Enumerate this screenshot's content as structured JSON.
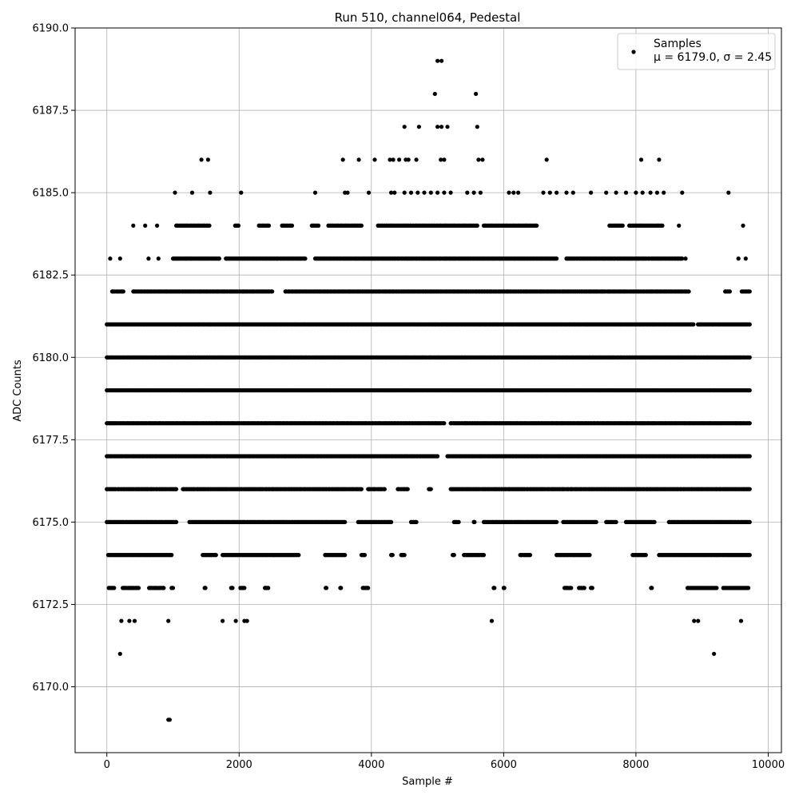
{
  "chart_data": {
    "type": "scatter",
    "title": "Run 510, channel064, Pedestal",
    "xlabel": "Sample #",
    "ylabel": "ADC Counts",
    "xlim": [
      -480,
      10200
    ],
    "ylim": [
      6168.0,
      6190.0
    ],
    "xticks": [
      0,
      2000,
      4000,
      6000,
      8000,
      10000
    ],
    "yticks": [
      6170.0,
      6172.5,
      6175.0,
      6177.5,
      6180.0,
      6182.5,
      6185.0,
      6187.5,
      6190.0
    ],
    "xtick_labels": [
      "0",
      "2000",
      "4000",
      "6000",
      "8000",
      "10000"
    ],
    "ytick_labels": [
      "6170.0",
      "6172.5",
      "6175.0",
      "6177.5",
      "6180.0",
      "6182.5",
      "6185.0",
      "6187.5",
      "6190.0"
    ],
    "grid": true,
    "legend_position": "top-right",
    "legend": {
      "label": "Samples",
      "stats": "μ = 6179.0, σ = 2.45"
    },
    "series": [
      {
        "name": "Samples",
        "color": "#000000",
        "n_samples": 9728,
        "mean": 6179.0,
        "std": 2.45,
        "levels": [
          6169,
          6171,
          6172,
          6173,
          6174,
          6175,
          6176,
          6177,
          6178,
          6179,
          6180,
          6181,
          6182,
          6183,
          6184,
          6185,
          6186,
          6187,
          6188,
          6189
        ],
        "points": [
          [
            930,
            6169
          ],
          [
            950,
            6169
          ],
          [
            200,
            6171
          ],
          [
            9180,
            6171
          ],
          [
            220,
            6172
          ],
          [
            340,
            6172
          ],
          [
            420,
            6172
          ],
          [
            930,
            6172
          ],
          [
            1750,
            6172
          ],
          [
            1950,
            6172
          ],
          [
            2080,
            6172
          ],
          [
            2120,
            6172
          ],
          [
            5820,
            6172
          ],
          [
            8880,
            6172
          ],
          [
            8940,
            6172
          ],
          [
            9590,
            6172
          ],
          [
            5000,
            6189
          ],
          [
            5060,
            6189
          ],
          [
            4960,
            6188
          ],
          [
            5580,
            6188
          ],
          [
            4500,
            6187
          ],
          [
            4720,
            6187
          ],
          [
            5000,
            6187
          ],
          [
            5060,
            6187
          ],
          [
            5150,
            6187
          ],
          [
            5600,
            6187
          ],
          [
            1430,
            6186
          ],
          [
            1530,
            6186
          ],
          [
            3570,
            6186
          ],
          [
            3810,
            6186
          ],
          [
            4050,
            6186
          ],
          [
            4280,
            6186
          ],
          [
            4330,
            6186
          ],
          [
            4420,
            6186
          ],
          [
            4520,
            6186
          ],
          [
            4560,
            6186
          ],
          [
            4680,
            6186
          ],
          [
            5050,
            6186
          ],
          [
            5100,
            6186
          ],
          [
            5620,
            6186
          ],
          [
            5680,
            6186
          ],
          [
            6650,
            6186
          ],
          [
            8080,
            6186
          ],
          [
            8350,
            6186
          ],
          [
            1030,
            6185
          ],
          [
            1290,
            6185
          ],
          [
            1560,
            6185
          ],
          [
            2030,
            6185
          ],
          [
            3150,
            6185
          ],
          [
            3600,
            6185
          ],
          [
            3640,
            6185
          ],
          [
            3960,
            6185
          ],
          [
            4300,
            6185
          ],
          [
            4350,
            6185
          ],
          [
            4500,
            6185
          ],
          [
            4600,
            6185
          ],
          [
            4700,
            6185
          ],
          [
            4800,
            6185
          ],
          [
            4900,
            6185
          ],
          [
            5000,
            6185
          ],
          [
            5100,
            6185
          ],
          [
            5200,
            6185
          ],
          [
            5450,
            6185
          ],
          [
            5550,
            6185
          ],
          [
            5650,
            6185
          ],
          [
            6080,
            6185
          ],
          [
            6150,
            6185
          ],
          [
            6220,
            6185
          ],
          [
            6600,
            6185
          ],
          [
            6700,
            6185
          ],
          [
            6800,
            6185
          ],
          [
            6950,
            6185
          ],
          [
            7050,
            6185
          ],
          [
            7320,
            6185
          ],
          [
            7550,
            6185
          ],
          [
            7700,
            6185
          ],
          [
            7850,
            6185
          ],
          [
            8000,
            6185
          ],
          [
            8100,
            6185
          ],
          [
            8220,
            6185
          ],
          [
            8320,
            6185
          ],
          [
            8420,
            6185
          ],
          [
            8700,
            6185
          ],
          [
            9400,
            6185
          ],
          [
            50,
            6183
          ],
          [
            200,
            6183
          ],
          [
            630,
            6183
          ],
          [
            780,
            6183
          ],
          [
            8750,
            6183
          ],
          [
            9550,
            6183
          ],
          [
            9660,
            6183
          ],
          [
            9620,
            6184
          ],
          [
            8650,
            6184
          ],
          [
            400,
            6184
          ],
          [
            580,
            6184
          ],
          [
            760,
            6184
          ]
        ],
        "bands": [
          {
            "y": 6173,
            "x_ranges": [
              [
                30,
                110
              ],
              [
                240,
                480
              ],
              [
                640,
                860
              ],
              [
                980,
                1000
              ],
              [
                1480,
                1490
              ],
              [
                1880,
                1900
              ],
              [
                2020,
                2080
              ],
              [
                2390,
                2440
              ],
              [
                3310,
                3320
              ],
              [
                3530,
                3540
              ],
              [
                3870,
                3950
              ],
              [
                5850,
                5860
              ],
              [
                6000,
                6010
              ],
              [
                6920,
                7020
              ],
              [
                7140,
                7220
              ],
              [
                7320,
                7340
              ],
              [
                8230,
                8240
              ],
              [
                8780,
                9220
              ],
              [
                9320,
                9700
              ]
            ]
          },
          {
            "y": 6174,
            "x_ranges": [
              [
                20,
                980
              ],
              [
                1450,
                1650
              ],
              [
                1750,
                2900
              ],
              [
                3300,
                3600
              ],
              [
                3850,
                3900
              ],
              [
                4300,
                4320
              ],
              [
                4450,
                4500
              ],
              [
                5230,
                5250
              ],
              [
                5400,
                5700
              ],
              [
                6250,
                6400
              ],
              [
                6800,
                7300
              ],
              [
                7950,
                8150
              ],
              [
                8350,
                9720
              ]
            ]
          },
          {
            "y": 6175,
            "x_ranges": [
              [
                0,
                1050
              ],
              [
                1250,
                3600
              ],
              [
                3800,
                4300
              ],
              [
                4600,
                4680
              ],
              [
                5250,
                5320
              ],
              [
                5550,
                5560
              ],
              [
                5700,
                6800
              ],
              [
                6900,
                7400
              ],
              [
                7550,
                7700
              ],
              [
                7850,
                8280
              ],
              [
                8500,
                9720
              ]
            ]
          },
          {
            "y": 6176,
            "x_ranges": [
              [
                0,
                1050
              ],
              [
                1150,
                3850
              ],
              [
                3950,
                4200
              ],
              [
                4400,
                4550
              ],
              [
                4870,
                4900
              ],
              [
                5200,
                9720
              ]
            ]
          },
          {
            "y": 6177,
            "x_ranges": [
              [
                0,
                5000
              ],
              [
                5150,
                9720
              ]
            ]
          },
          {
            "y": 6178,
            "x_ranges": [
              [
                0,
                5100
              ],
              [
                5200,
                9720
              ]
            ]
          },
          {
            "y": 6179,
            "x_ranges": [
              [
                0,
                9720
              ]
            ]
          },
          {
            "y": 6180,
            "x_ranges": [
              [
                0,
                9600
              ],
              [
                9630,
                9720
              ]
            ]
          },
          {
            "y": 6181,
            "x_ranges": [
              [
                0,
                8870
              ],
              [
                8940,
                9720
              ]
            ]
          },
          {
            "y": 6182,
            "x_ranges": [
              [
                80,
                250
              ],
              [
                400,
                2500
              ],
              [
                2700,
                8800
              ],
              [
                9350,
                9420
              ],
              [
                9600,
                9720
              ]
            ]
          },
          {
            "y": 6183,
            "x_ranges": [
              [
                1000,
                1700
              ],
              [
                1800,
                3000
              ],
              [
                3150,
                6800
              ],
              [
                6950,
                8700
              ]
            ]
          },
          {
            "y": 6184,
            "x_ranges": [
              [
                1050,
                1550
              ],
              [
                1940,
                1990
              ],
              [
                2300,
                2450
              ],
              [
                2650,
                2800
              ],
              [
                3100,
                3200
              ],
              [
                3350,
                3850
              ],
              [
                4100,
                5600
              ],
              [
                5700,
                6500
              ],
              [
                7600,
                7800
              ],
              [
                7900,
                8400
              ]
            ]
          }
        ]
      }
    ]
  }
}
